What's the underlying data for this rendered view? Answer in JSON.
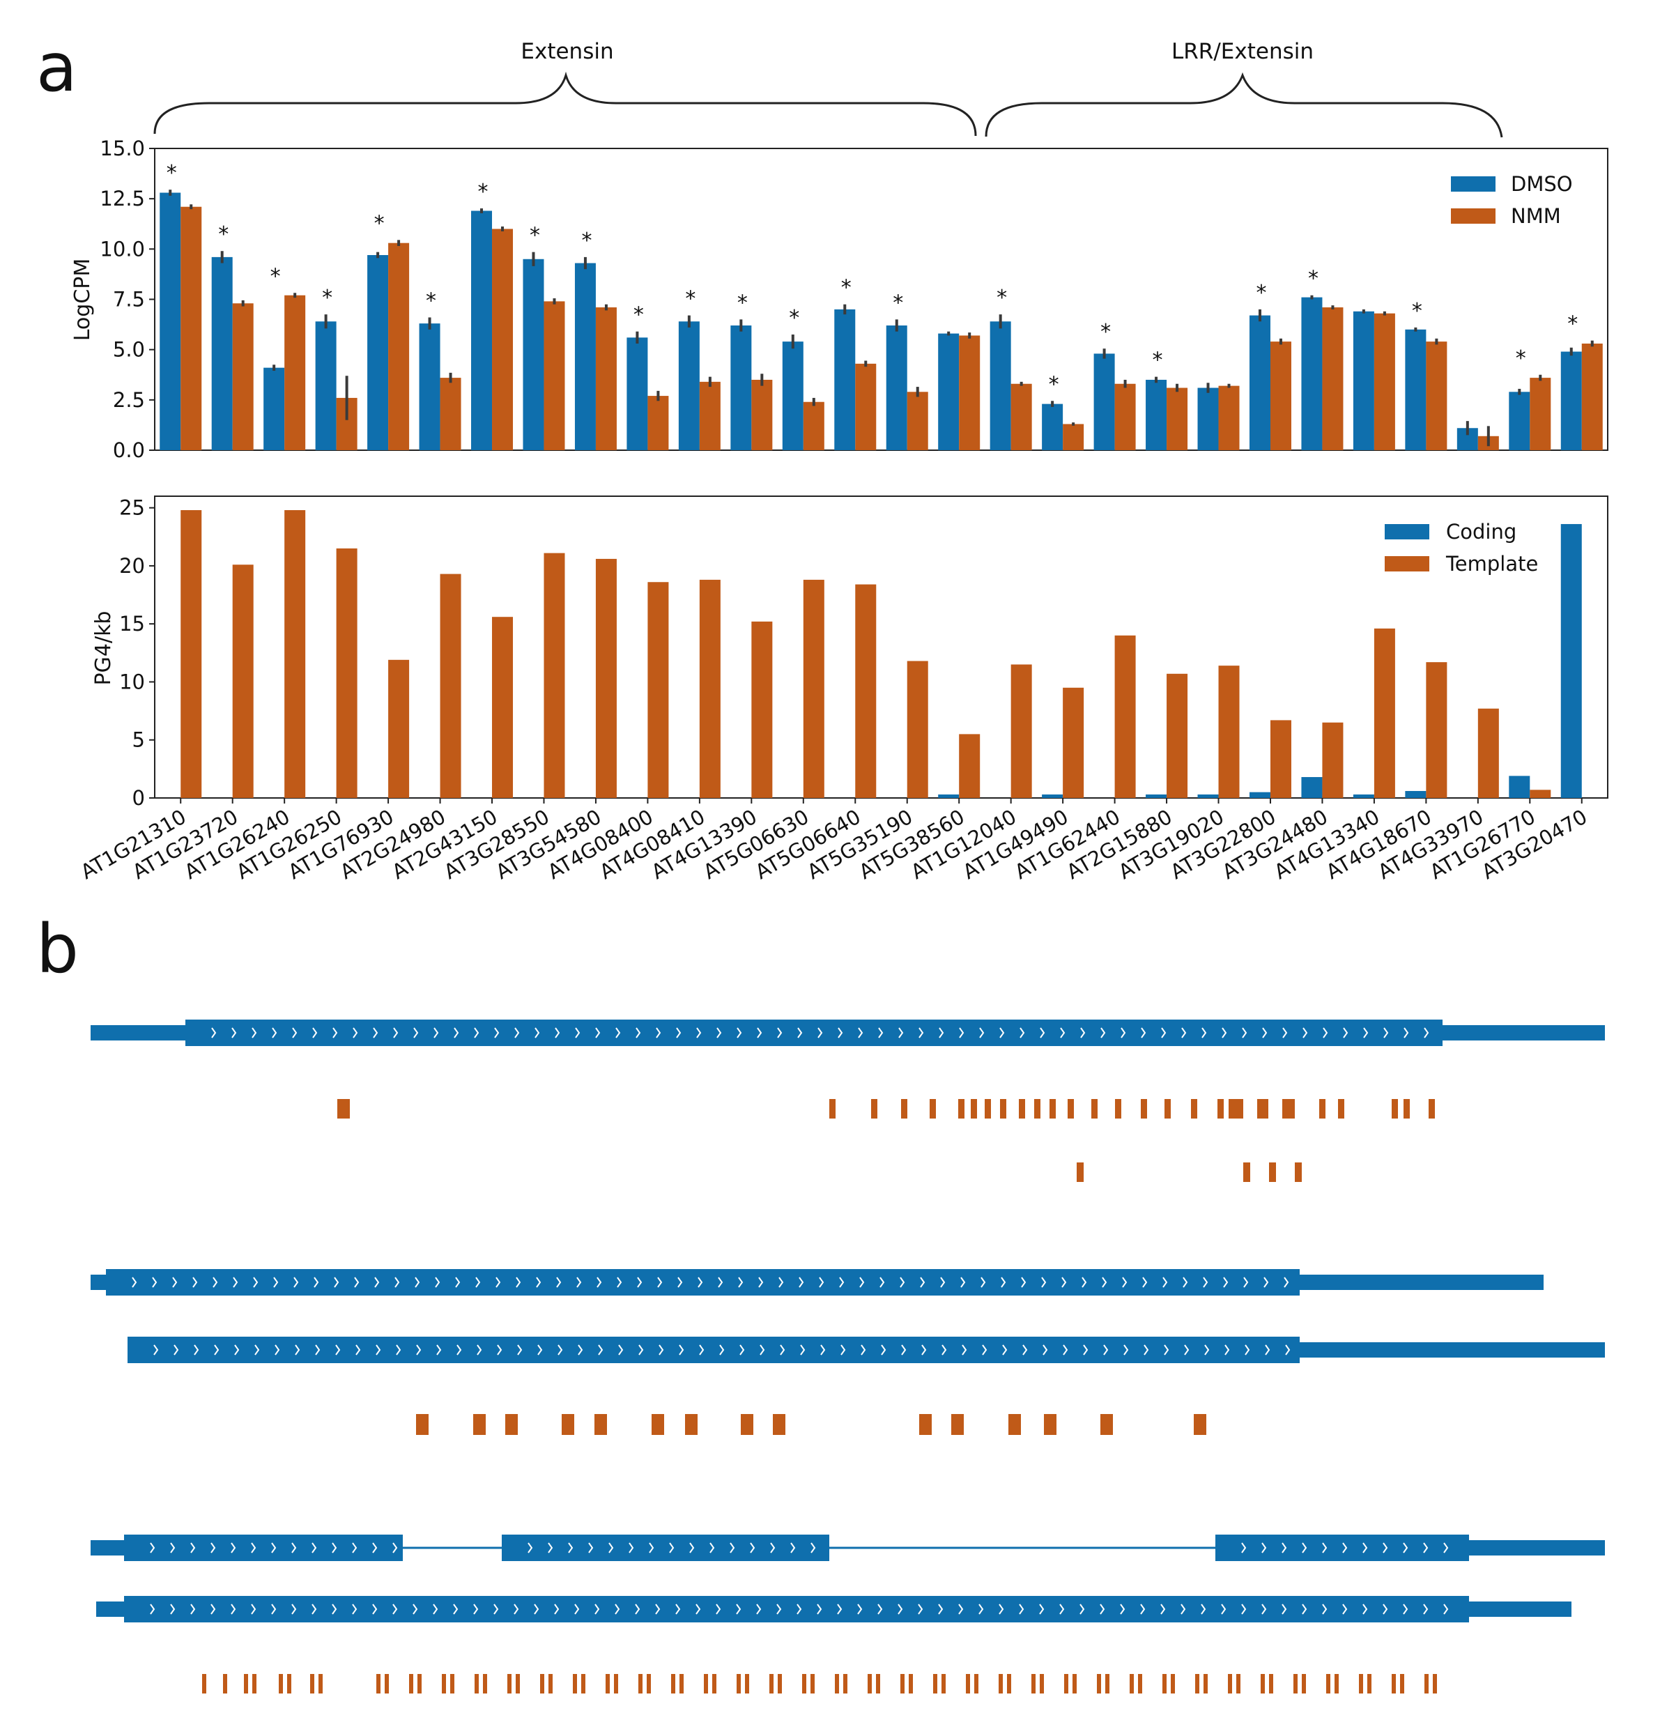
{
  "panel_a_label": "a",
  "panel_b_label": "b",
  "colors": {
    "blue": "#0f6fad",
    "orange": "#c05a18",
    "err": "#3a3a3a",
    "axis": "#222222"
  },
  "groups": [
    {
      "label": "Extensin"
    },
    {
      "label": "LRR/Extensin"
    }
  ],
  "chart_data": [
    {
      "type": "bar",
      "ylabel": "LogCPM",
      "ylim": [
        0,
        15
      ],
      "yticks": [
        "0.0",
        "2.5",
        "5.0",
        "7.5",
        "10.0",
        "12.5",
        "15.0"
      ],
      "legend": "top-right",
      "categories": [
        "AT1G21310",
        "AT1G23720",
        "AT1G26240",
        "AT1G26250",
        "AT1G76930",
        "AT2G24980",
        "AT2G43150",
        "AT3G28550",
        "AT3G54580",
        "AT4G08400",
        "AT4G08410",
        "AT4G13390",
        "AT5G06630",
        "AT5G06640",
        "AT5G35190",
        "AT5G38560",
        "AT1G12040",
        "AT1G49490",
        "AT1G62440",
        "AT2G15880",
        "AT3G19020",
        "AT3G22800",
        "AT3G24480",
        "AT4G13340",
        "AT4G18670",
        "AT4G33970",
        "AT1G26770",
        "AT3G20470"
      ],
      "significance": [
        "*",
        "*",
        "*",
        "*",
        "*",
        "*",
        "*",
        "*",
        "*",
        "*",
        "*",
        "*",
        "*",
        "*",
        "*",
        "",
        "*",
        "*",
        "*",
        "*",
        "",
        "*",
        "*",
        "",
        "*",
        "",
        "*",
        "*"
      ],
      "series": [
        {
          "name": "DMSO",
          "values": [
            12.8,
            9.6,
            4.1,
            6.4,
            9.7,
            6.3,
            11.9,
            9.5,
            9.3,
            5.6,
            6.4,
            6.2,
            5.4,
            7.0,
            6.2,
            5.8,
            6.4,
            2.3,
            4.8,
            3.5,
            3.1,
            6.7,
            7.6,
            6.9,
            6.0,
            1.1,
            2.9,
            4.9
          ],
          "err": [
            0.15,
            0.3,
            0.15,
            0.35,
            0.15,
            0.3,
            0.12,
            0.35,
            0.3,
            0.3,
            0.3,
            0.3,
            0.35,
            0.25,
            0.3,
            0.1,
            0.35,
            0.15,
            0.25,
            0.15,
            0.25,
            0.3,
            0.1,
            0.1,
            0.1,
            0.35,
            0.15,
            0.2
          ]
        },
        {
          "name": "NMM",
          "values": [
            12.1,
            7.3,
            7.7,
            2.6,
            10.3,
            3.6,
            11.0,
            7.4,
            7.1,
            2.7,
            3.4,
            3.5,
            2.4,
            4.3,
            2.9,
            5.7,
            3.3,
            1.3,
            3.3,
            3.1,
            3.2,
            5.4,
            7.1,
            6.8,
            5.4,
            0.7,
            3.6,
            5.3
          ],
          "err": [
            0.12,
            0.15,
            0.12,
            1.1,
            0.15,
            0.25,
            0.12,
            0.15,
            0.15,
            0.25,
            0.25,
            0.3,
            0.2,
            0.15,
            0.25,
            0.15,
            0.1,
            0.08,
            0.2,
            0.2,
            0.1,
            0.15,
            0.1,
            0.1,
            0.15,
            0.5,
            0.15,
            0.15
          ]
        }
      ]
    },
    {
      "type": "bar",
      "ylabel": "PG4/kb",
      "ylim": [
        0,
        26
      ],
      "yticks": [
        "0",
        "5",
        "10",
        "15",
        "20",
        "25"
      ],
      "legend": "top-right",
      "categories": [
        "AT1G21310",
        "AT1G23720",
        "AT1G26240",
        "AT1G26250",
        "AT1G76930",
        "AT2G24980",
        "AT2G43150",
        "AT3G28550",
        "AT3G54580",
        "AT4G08400",
        "AT4G08410",
        "AT4G13390",
        "AT5G06630",
        "AT5G06640",
        "AT5G35190",
        "AT5G38560",
        "AT1G12040",
        "AT1G49490",
        "AT1G62440",
        "AT2G15880",
        "AT3G19020",
        "AT3G22800",
        "AT3G24480",
        "AT4G13340",
        "AT4G18670",
        "AT4G33970",
        "AT1G26770",
        "AT3G20470"
      ],
      "series": [
        {
          "name": "Coding",
          "values": [
            0,
            0,
            0,
            0,
            0,
            0,
            0,
            0,
            0,
            0,
            0,
            0,
            0,
            0,
            0,
            0.3,
            0,
            0.3,
            0,
            0.3,
            0.3,
            0.5,
            1.8,
            0.3,
            0.6,
            0,
            1.9,
            23.6
          ]
        },
        {
          "name": "Template",
          "values": [
            24.8,
            20.1,
            24.8,
            21.5,
            11.9,
            19.3,
            15.6,
            21.1,
            20.6,
            18.6,
            18.8,
            15.2,
            18.8,
            18.4,
            11.8,
            5.5,
            11.5,
            9.5,
            14.0,
            10.7,
            11.4,
            6.7,
            6.5,
            14.6,
            11.7,
            7.7,
            0.7,
            0
          ]
        }
      ]
    }
  ]
}
